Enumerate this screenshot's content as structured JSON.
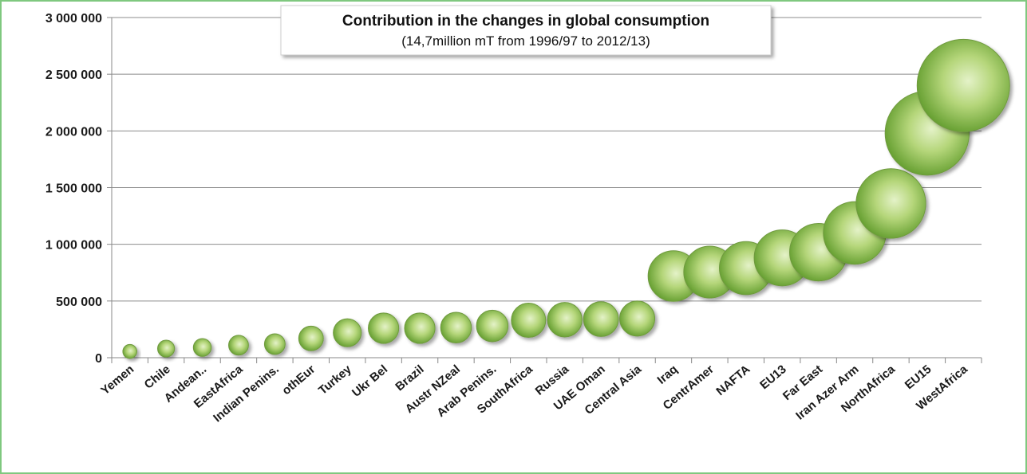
{
  "chart_data": {
    "type": "bubble",
    "title": "Contribution in the changes in global consumption",
    "subtitle": "(14,7million mT from 1996/97 to 2012/13)",
    "xlabel": "",
    "ylabel": "",
    "ylim": [
      0,
      3000000
    ],
    "yticks": [
      0,
      500000,
      1000000,
      1500000,
      2000000,
      2500000,
      3000000
    ],
    "ytick_labels": [
      "0",
      "500 000",
      "1 000 000",
      "1 500 000",
      "2 000 000",
      "2 500 000",
      "3 000 000"
    ],
    "grid": true,
    "legend": "none",
    "categories": [
      "Yemen",
      "Chile",
      "Andean..",
      "EastAfrica",
      "Indian Penins.",
      "othEur",
      "Turkey",
      "Ukr Bel",
      "Brazil",
      "Austr NZeal",
      "Arab Penins.",
      "SouthAfrica",
      "Russia",
      "UAE Oman",
      "Central Asia",
      "Iraq",
      "CentrAmer",
      "NAFTA",
      "EU13",
      "Far East",
      "Iran Azer Arm",
      "NorthAfrica",
      "EU15",
      "WestAfrica"
    ],
    "values": [
      55000,
      80000,
      90000,
      110000,
      120000,
      170000,
      220000,
      260000,
      260000,
      265000,
      280000,
      330000,
      335000,
      340000,
      345000,
      720000,
      755000,
      790000,
      880000,
      930000,
      1100000,
      1360000,
      1980000,
      2400000
    ],
    "bubble_color": "#7cb342"
  }
}
